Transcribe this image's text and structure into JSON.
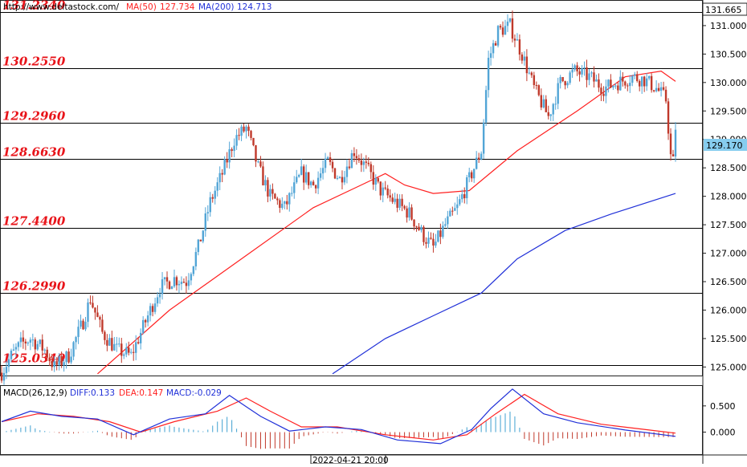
{
  "header": {
    "url": "http://www.deltastock.com/",
    "ma50_label": "MA(50)",
    "ma50_value": "127.734",
    "ma200_label": "MA(200)",
    "ma200_value": "124.713",
    "top_price_badge": "131.665"
  },
  "current_price_badge": "129.170",
  "colors": {
    "bull_candle": "#52a5d6",
    "bear_candle": "#c0392b",
    "ma50": "#ff2020",
    "ma200": "#2030d8",
    "level_line": "#000000",
    "level_text": "#e8141a",
    "macd_hist": "#3fa0d0",
    "price_badge_bg": "#87cdef"
  },
  "chart_data": [
    {
      "type": "candlestick",
      "levels": [
        "131.2340",
        "130.2550",
        "129.2960",
        "128.6630",
        "127.4400",
        "126.2990",
        "125.0340"
      ],
      "y_ticks": [
        "131.000",
        "130.500",
        "130.000",
        "129.500",
        "129.000",
        "128.500",
        "128.000",
        "127.500",
        "127.000",
        "126.500",
        "126.000",
        "125.500",
        "125.000"
      ],
      "ylim": [
        124.85,
        131.45
      ],
      "anchors": [
        [
          0,
          124.9
        ],
        [
          4,
          125.2
        ],
        [
          8,
          125.4
        ],
        [
          12,
          125.5
        ],
        [
          18,
          125.3
        ],
        [
          22,
          125.0
        ],
        [
          28,
          125.2
        ],
        [
          34,
          125.8
        ],
        [
          37,
          126.2
        ],
        [
          42,
          125.6
        ],
        [
          48,
          125.3
        ],
        [
          54,
          125.2
        ],
        [
          60,
          125.8
        ],
        [
          66,
          126.4
        ],
        [
          72,
          126.55
        ],
        [
          77,
          126.5
        ],
        [
          82,
          127.1
        ],
        [
          87,
          127.9
        ],
        [
          92,
          128.4
        ],
        [
          97,
          129.0
        ],
        [
          102,
          129.2
        ],
        [
          107,
          128.5
        ],
        [
          112,
          128.0
        ],
        [
          118,
          127.8
        ],
        [
          125,
          128.4
        ],
        [
          130,
          128.2
        ],
        [
          136,
          128.6
        ],
        [
          141,
          128.3
        ],
        [
          147,
          128.8
        ],
        [
          152,
          128.5
        ],
        [
          158,
          128.1
        ],
        [
          164,
          127.9
        ],
        [
          170,
          127.7
        ],
        [
          176,
          127.3
        ],
        [
          180,
          127.1
        ],
        [
          185,
          127.5
        ],
        [
          190,
          127.8
        ],
        [
          195,
          128.3
        ],
        [
          200,
          128.8
        ],
        [
          203,
          130.4
        ],
        [
          207,
          130.9
        ],
        [
          212,
          131.0
        ],
        [
          217,
          130.5
        ],
        [
          222,
          129.9
        ],
        [
          228,
          129.4
        ],
        [
          233,
          130.0
        ],
        [
          239,
          130.2
        ],
        [
          245,
          130.1
        ],
        [
          251,
          129.9
        ],
        [
          257,
          130.0
        ],
        [
          263,
          130.1
        ],
        [
          268,
          130.05
        ],
        [
          273,
          129.9
        ],
        [
          277,
          129.7
        ],
        [
          279,
          128.7
        ],
        [
          281,
          129.17
        ]
      ],
      "ma50": [
        [
          40,
          124.88
        ],
        [
          70,
          126.0
        ],
        [
          100,
          126.9
        ],
        [
          130,
          127.8
        ],
        [
          150,
          128.2
        ],
        [
          160,
          128.4
        ],
        [
          168,
          128.2
        ],
        [
          180,
          128.05
        ],
        [
          195,
          128.1
        ],
        [
          215,
          128.8
        ],
        [
          240,
          129.5
        ],
        [
          260,
          130.1
        ],
        [
          275,
          130.2
        ],
        [
          281,
          130.02
        ]
      ],
      "ma200": [
        [
          138,
          124.88
        ],
        [
          160,
          125.5
        ],
        [
          180,
          125.9
        ],
        [
          200,
          126.3
        ],
        [
          215,
          126.9
        ],
        [
          235,
          127.4
        ],
        [
          255,
          127.7
        ],
        [
          281,
          128.05
        ]
      ]
    },
    {
      "type": "macd",
      "label": "MACD(26,12,9)",
      "diff_label": "DIFF:0.133",
      "dea_label": "DEA:0.147",
      "macd_label": "MACD:-0.029",
      "y_ticks": [
        "0.500",
        "0.000"
      ],
      "ylim": [
        -0.42,
        0.88
      ],
      "diff": [
        [
          0,
          0.2
        ],
        [
          12,
          0.4
        ],
        [
          25,
          0.3
        ],
        [
          40,
          0.25
        ],
        [
          50,
          0.05
        ],
        [
          55,
          -0.05
        ],
        [
          70,
          0.25
        ],
        [
          85,
          0.35
        ],
        [
          95,
          0.7
        ],
        [
          108,
          0.3
        ],
        [
          120,
          0.02
        ],
        [
          135,
          0.1
        ],
        [
          150,
          0.05
        ],
        [
          165,
          -0.15
        ],
        [
          183,
          -0.22
        ],
        [
          196,
          0.05
        ],
        [
          204,
          0.45
        ],
        [
          213,
          0.82
        ],
        [
          226,
          0.35
        ],
        [
          240,
          0.18
        ],
        [
          260,
          0.04
        ],
        [
          281,
          -0.08
        ]
      ],
      "dea": [
        [
          0,
          0.2
        ],
        [
          15,
          0.35
        ],
        [
          30,
          0.3
        ],
        [
          45,
          0.2
        ],
        [
          58,
          0.0
        ],
        [
          72,
          0.2
        ],
        [
          90,
          0.4
        ],
        [
          102,
          0.65
        ],
        [
          112,
          0.4
        ],
        [
          125,
          0.1
        ],
        [
          140,
          0.1
        ],
        [
          160,
          -0.05
        ],
        [
          180,
          -0.15
        ],
        [
          194,
          -0.05
        ],
        [
          206,
          0.35
        ],
        [
          218,
          0.72
        ],
        [
          232,
          0.35
        ],
        [
          250,
          0.15
        ],
        [
          270,
          0.04
        ],
        [
          281,
          -0.02
        ]
      ]
    }
  ],
  "x_cursor_label": "2022-04-21 20:00"
}
